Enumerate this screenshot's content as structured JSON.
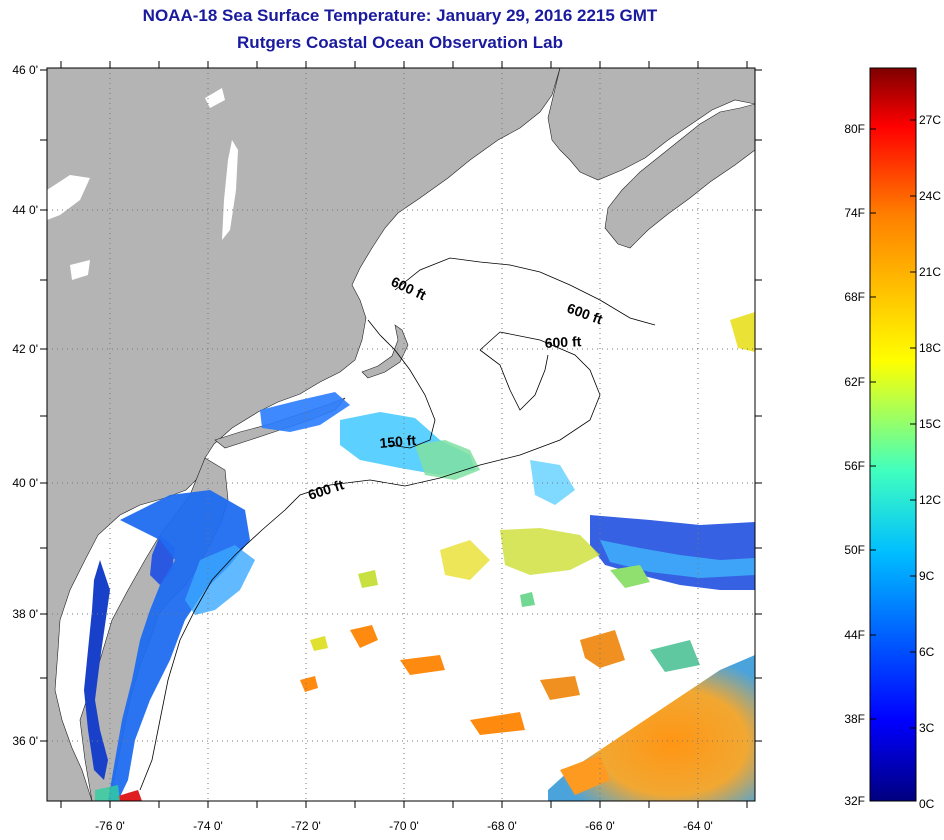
{
  "header": {
    "title": "NOAA-18 Sea Surface Temperature:  January 29, 2016 2215 GMT",
    "subtitle": "Rutgers Coastal Ocean Observation Lab"
  },
  "map": {
    "lat_labels": [
      "46 0'",
      "44 0'",
      "42 0'",
      "40 0'",
      "38 0'",
      "36 0'"
    ],
    "lon_labels": [
      "-76 0'",
      "-74 0'",
      "-72 0'",
      "-70 0'",
      "-68 0'",
      "-66 0'",
      "-64 0'"
    ],
    "lat_range": [
      35,
      46
    ],
    "lon_range": [
      -77,
      -62.5
    ],
    "land_color": "#b4b4b4",
    "contours": {
      "c600_north": "600 ft",
      "c600_east": "600 ft",
      "c600_georges": "600 ft",
      "c150": "150 ft",
      "c600_south": "600 ft"
    }
  },
  "colorbar": {
    "f_labels": [
      "80F",
      "74F",
      "68F",
      "62F",
      "56F",
      "50F",
      "44F",
      "38F",
      "32F"
    ],
    "c_labels": [
      "27C",
      "24C",
      "21C",
      "18C",
      "15C",
      "12C",
      "9C",
      "6C",
      "3C",
      "0C"
    ],
    "range_c": [
      0,
      29
    ],
    "colors": [
      "#00007f",
      "#0000ff",
      "#007fff",
      "#00ffff",
      "#7fff7f",
      "#ffff00",
      "#ff7f00",
      "#ff0000",
      "#7f0000"
    ]
  }
}
